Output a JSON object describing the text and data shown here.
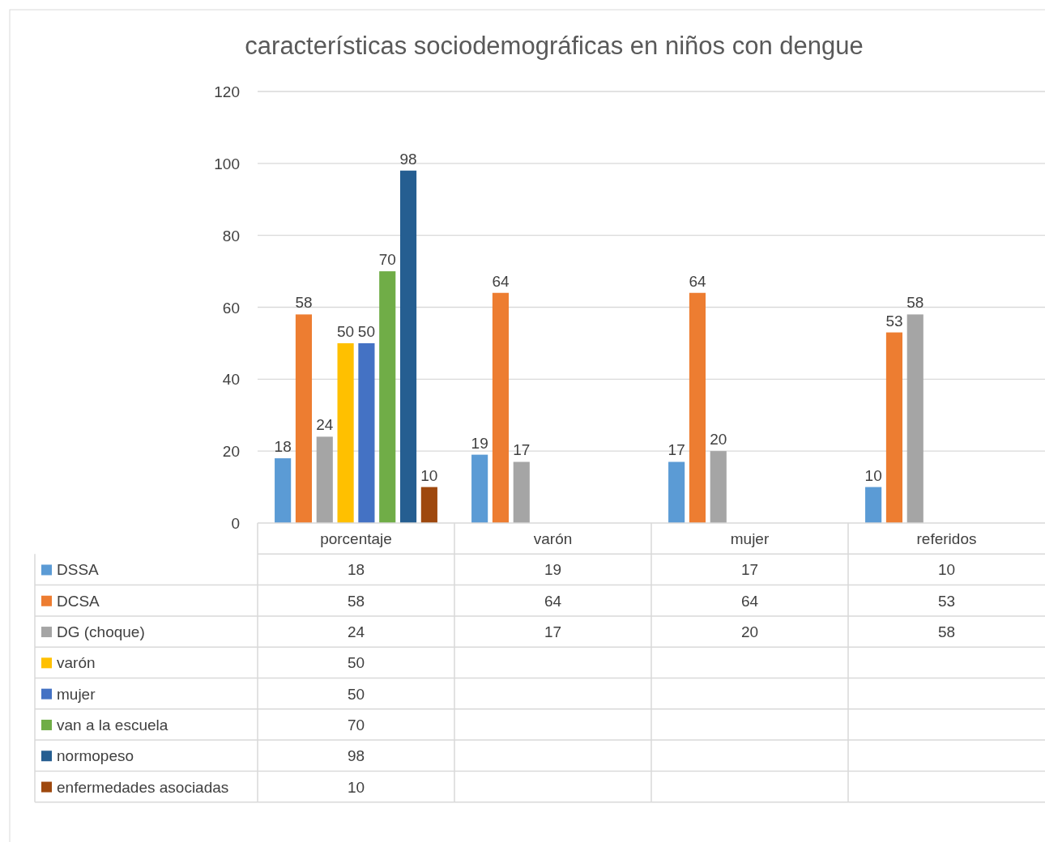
{
  "chart_data": {
    "type": "bar",
    "title": "características sociodemográficas en niños con dengue",
    "categories": [
      "porcentaje",
      "varón",
      "mujer",
      "referidos"
    ],
    "series": [
      {
        "name": "DSSA",
        "color": "#5b9bd5",
        "values": [
          18,
          19,
          17,
          10
        ]
      },
      {
        "name": "DCSA",
        "color": "#ed7d31",
        "values": [
          58,
          64,
          64,
          53
        ]
      },
      {
        "name": "DG (choque)",
        "color": "#a5a5a5",
        "values": [
          24,
          17,
          20,
          58
        ]
      },
      {
        "name": "varón",
        "color": "#ffc000",
        "values": [
          50,
          null,
          null,
          null
        ]
      },
      {
        "name": "mujer",
        "color": "#4472c4",
        "values": [
          50,
          null,
          null,
          null
        ]
      },
      {
        "name": "van a la escuela",
        "color": "#70ad47",
        "values": [
          70,
          null,
          null,
          null
        ]
      },
      {
        "name": "normopeso",
        "color": "#255e91",
        "values": [
          98,
          null,
          null,
          null
        ]
      },
      {
        "name": "enfermedades asociadas",
        "color": "#9e480e",
        "values": [
          10,
          null,
          null,
          null
        ]
      }
    ],
    "annotations": [
      "18",
      "19",
      "17",
      "10",
      "58",
      "64",
      "64",
      "53",
      "24",
      "17",
      "20",
      "58",
      "50",
      "50",
      "70",
      "98",
      "10"
    ],
    "ylim": [
      0,
      120
    ],
    "yticks": [
      0,
      20,
      40,
      60,
      80,
      100,
      120
    ],
    "grid": "y",
    "data_labels": true,
    "legend": "bottom"
  }
}
